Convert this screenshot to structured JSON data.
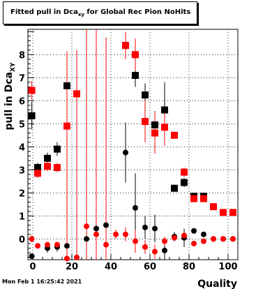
{
  "title_main": "Fitted pull in Dca",
  "title_sub": "xy",
  "title_rest": " for Global Rec Pion NoHits",
  "timestamp": "Mon Feb  1 16:25:42 2021",
  "chart_data": {
    "type": "scatter",
    "title": "Fitted pull in Dca_xy for Global Rec Pion NoHits",
    "xlabel": "Quality",
    "ylabel": "pull in Dca_XY",
    "xlim": [
      -2.5,
      105
    ],
    "ylim": [
      -0.9,
      9.1
    ],
    "grid": true,
    "x_ticks": [
      "0",
      "20",
      "40",
      "60",
      "80",
      "100"
    ],
    "x_tick_values": [
      0,
      20,
      40,
      60,
      80,
      100
    ],
    "y_ticks": [
      "0",
      "1",
      "2",
      "3",
      "4",
      "5",
      "6",
      "7",
      "8"
    ],
    "y_tick_values": [
      0,
      1,
      2,
      3,
      4,
      5,
      6,
      7,
      8
    ],
    "series": [
      {
        "marker": "square",
        "color": "#000000",
        "x": [
          -0.5,
          2.5,
          7.5,
          12.5,
          17.5,
          47.5,
          52.5,
          57.5,
          62.5,
          67.5,
          72.5,
          77.5,
          82.5,
          87.5
        ],
        "y": [
          5.35,
          3.1,
          3.5,
          3.9,
          6.65,
          8.4,
          7.1,
          6.25,
          4.95,
          5.6,
          2.2,
          2.45,
          1.85,
          1.85
        ],
        "err": [
          0.6,
          0.2,
          0.25,
          0.3,
          1.2,
          0.5,
          0.5,
          0.5,
          0.6,
          1.2,
          0.15,
          0.2,
          0.15,
          0.1
        ]
      },
      {
        "marker": "square",
        "color": "#ff0000",
        "x": [
          -0.5,
          2.5,
          7.5,
          12.5,
          17.5,
          22.5,
          47.5,
          52.5,
          57.5,
          62.5,
          67.5,
          72.5,
          77.5,
          82.5,
          87.5,
          92.5,
          97.5,
          102.5
        ],
        "y": [
          6.45,
          2.85,
          3.15,
          3.1,
          4.9,
          6.3,
          8.4,
          8.0,
          5.1,
          4.6,
          4.85,
          4.5,
          2.9,
          1.75,
          1.75,
          1.4,
          1.15,
          1.15
        ],
        "err": [
          0.4,
          0.2,
          0.2,
          0.2,
          0.5,
          1.8,
          0.6,
          0.7,
          0.9,
          0.9,
          0.8,
          0.1,
          0.2,
          0.1,
          0.1,
          0.05,
          0.05,
          0.05
        ]
      },
      {
        "marker": "circle",
        "color": "#000000",
        "x": [
          -0.5,
          7.5,
          12.5,
          17.5,
          27.5,
          32.5,
          37.5,
          47.5,
          52.5,
          57.5,
          62.5,
          67.5,
          72.5,
          77.5,
          82.5,
          87.5,
          92.5,
          97.5,
          102.5
        ],
        "y": [
          -0.75,
          -0.4,
          -0.35,
          -0.3,
          0.0,
          0.45,
          0.6,
          3.75,
          1.35,
          0.5,
          0.45,
          -0.5,
          0.1,
          0.05,
          0.35,
          0.2,
          0.0,
          0.0,
          0.0
        ],
        "err": [
          0.1,
          0.2,
          0.2,
          0.9,
          0.8,
          0.9,
          0.6,
          1.3,
          1.5,
          0.5,
          0.6,
          0.6,
          0.2,
          0.4,
          0.1,
          0.1,
          0.05,
          0.05,
          0.05
        ]
      },
      {
        "marker": "circle",
        "color": "#ff0000",
        "x": [
          -0.5,
          2.5,
          7.5,
          12.5,
          17.5,
          22.5,
          27.5,
          32.5,
          37.5,
          42.5,
          47.5,
          52.5,
          57.5,
          62.5,
          67.5,
          72.5,
          77.5,
          82.5,
          87.5,
          92.5,
          97.5,
          102.5
        ],
        "y": [
          0.0,
          -0.3,
          -0.25,
          -0.25,
          -0.85,
          -0.8,
          0.55,
          0.2,
          -0.25,
          0.2,
          0.2,
          -0.1,
          -0.35,
          -0.55,
          -0.1,
          0.05,
          0.15,
          -0.2,
          -0.1,
          0.0,
          0.0,
          0.0
        ],
        "err": [
          0.15,
          0.1,
          0.1,
          0.1,
          9.0,
          9.0,
          9.0,
          9.0,
          9.0,
          0.2,
          0.3,
          0.5,
          0.3,
          0.3,
          0.2,
          0.1,
          0.1,
          0.1,
          0.05,
          0.05,
          0.05,
          0.05
        ]
      }
    ]
  }
}
